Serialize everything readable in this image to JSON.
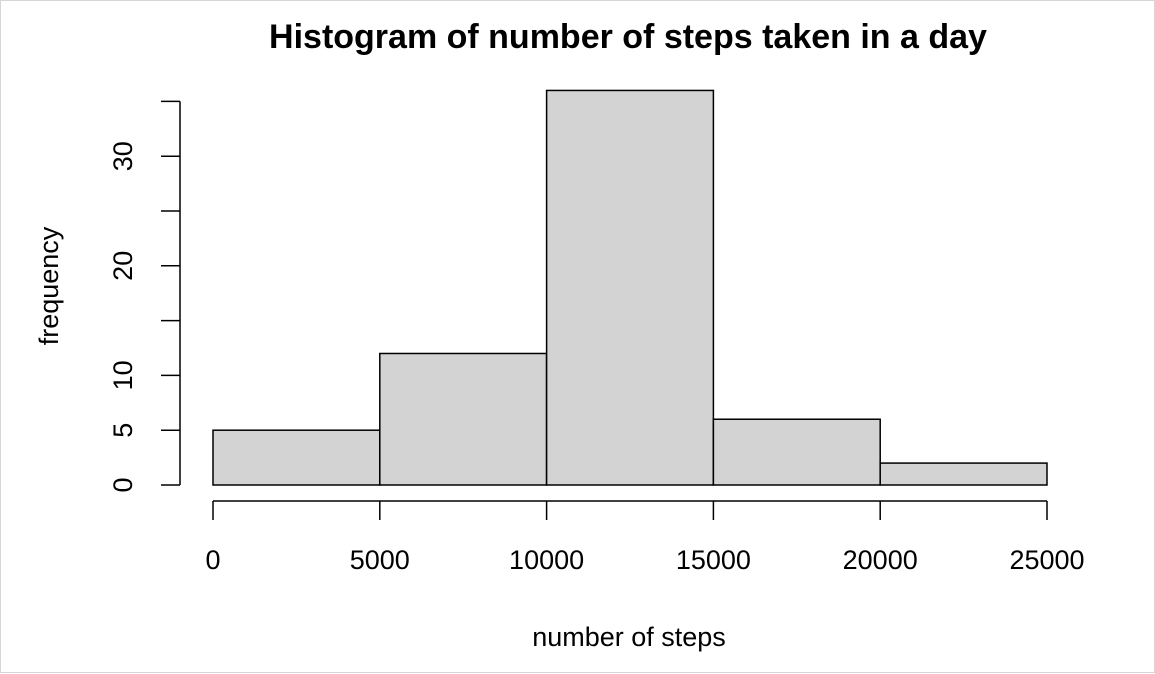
{
  "chart_data": {
    "type": "bar",
    "title": "Histogram of number of steps taken in a day",
    "xlabel": "number of steps",
    "ylabel": "frequency",
    "bins": [
      {
        "start": 0,
        "end": 5000,
        "count": 5
      },
      {
        "start": 5000,
        "end": 10000,
        "count": 12
      },
      {
        "start": 10000,
        "end": 15000,
        "count": 36
      },
      {
        "start": 15000,
        "end": 20000,
        "count": 6
      },
      {
        "start": 20000,
        "end": 25000,
        "count": 2
      }
    ],
    "xlim": [
      0,
      25000
    ],
    "ylim": [
      0,
      35
    ],
    "x_ticks": [
      0,
      5000,
      10000,
      15000,
      20000,
      25000
    ],
    "y_ticks": [
      0,
      5,
      10,
      15,
      20,
      25,
      30,
      35
    ],
    "y_tick_labels": [
      "0",
      "5",
      "10",
      "",
      "20",
      "",
      "30",
      ""
    ],
    "bar_color": "#d3d3d3",
    "grid": false,
    "legend": "none"
  }
}
